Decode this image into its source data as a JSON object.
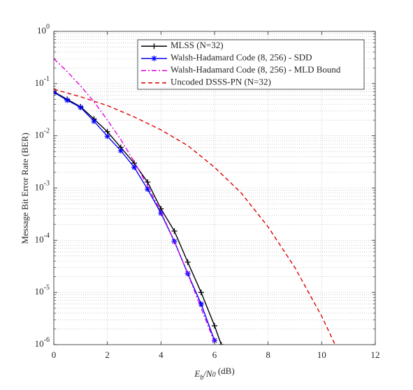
{
  "chart_data": {
    "type": "line",
    "xlabel": "E_b/N_0 (dB)",
    "ylabel": "Message Bit Error Rate (BER)",
    "xlim": [
      0,
      12
    ],
    "xticks": [
      0,
      2,
      4,
      6,
      8,
      10,
      12
    ],
    "ylim": [
      1e-06,
      1
    ],
    "log_y": true,
    "yticks": [
      {
        "value": 1e-06,
        "label": "10^-6"
      },
      {
        "value": 1e-05,
        "label": "10^-5"
      },
      {
        "value": 0.0001,
        "label": "10^-4"
      },
      {
        "value": 0.001,
        "label": "10^-3"
      },
      {
        "value": 0.01,
        "label": "10^-2"
      },
      {
        "value": 0.1,
        "label": "10^-1"
      },
      {
        "value": 1,
        "label": "10^0"
      }
    ],
    "grid": true,
    "minor_grid": true,
    "legend": "upper right",
    "series": [
      {
        "name": "MLSS (N=32)",
        "color": "#000000",
        "dash": "solid",
        "marker": "plus",
        "x": [
          0,
          0.5,
          1,
          1.5,
          2,
          2.5,
          3,
          3.5,
          4,
          4.5,
          5,
          5.5,
          6,
          6.25
        ],
        "values": [
          0.07,
          0.05,
          0.036,
          0.021,
          0.012,
          0.006,
          0.003,
          0.0013,
          0.0004,
          0.00015,
          3.8e-05,
          1e-05,
          2.3e-06,
          1e-06
        ]
      },
      {
        "name": "Walsh-Hadamard Code (8, 256) - SDD",
        "color": "#0000ff",
        "dash": "solid",
        "marker": "star",
        "x": [
          0,
          0.5,
          1,
          1.5,
          2,
          2.5,
          3,
          3.5,
          4,
          4.5,
          5,
          5.5,
          6
        ],
        "values": [
          0.068,
          0.048,
          0.035,
          0.019,
          0.0098,
          0.0052,
          0.0025,
          0.00095,
          0.00033,
          9.5e-05,
          2.3e-05,
          6e-06,
          1.2e-06
        ]
      },
      {
        "name": "Walsh-Hadamard Code (8, 256) - MLD Bound",
        "color": "#e000e0",
        "dash": "dashdot",
        "marker": "none",
        "x": [
          0,
          0.5,
          1,
          1.5,
          2,
          2.5,
          3,
          3.5,
          4,
          4.5,
          5,
          5.5,
          6,
          6.05
        ],
        "values": [
          0.3,
          0.17,
          0.09,
          0.045,
          0.02,
          0.0085,
          0.0032,
          0.0011,
          0.00035,
          9.5e-05,
          2.3e-05,
          5e-06,
          1.1e-06,
          1e-06
        ]
      },
      {
        "name": "Uncoded DSSS-PN (N=32)",
        "color": "#dd0000",
        "dash": "dashed",
        "marker": "none",
        "x": [
          0,
          1,
          2,
          3,
          4,
          5,
          6,
          7,
          8,
          9,
          10,
          10.5
        ],
        "values": [
          0.078,
          0.056,
          0.038,
          0.023,
          0.013,
          0.0065,
          0.0025,
          0.0008,
          0.00018,
          3e-05,
          3.5e-06,
          1e-06
        ]
      }
    ]
  }
}
